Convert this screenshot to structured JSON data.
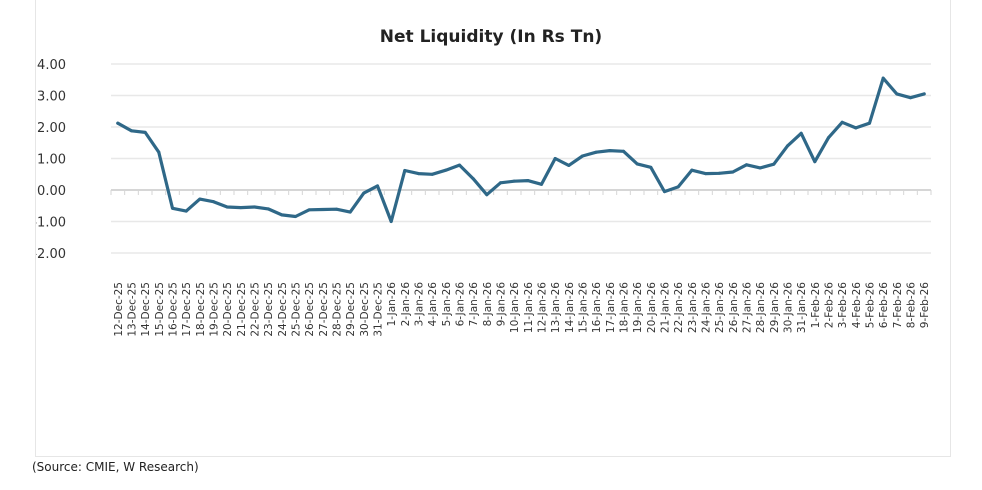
{
  "chart_data": {
    "type": "line",
    "title": "Net Liquidity (In Rs Tn)",
    "xlabel": "",
    "ylabel": "",
    "ylim": [
      -2,
      4
    ],
    "yticks": [
      "4.00",
      "3.00",
      "2.00",
      "1.00",
      "0.00",
      "-1.00",
      "-2.00"
    ],
    "grid": true,
    "line_color": "#2f6888",
    "categories": [
      "12-Dec-25",
      "13-Dec-25",
      "14-Dec-25",
      "15-Dec-25",
      "16-Dec-25",
      "17-Dec-25",
      "18-Dec-25",
      "19-Dec-25",
      "20-Dec-25",
      "21-Dec-25",
      "22-Dec-25",
      "23-Dec-25",
      "24-Dec-25",
      "25-Dec-25",
      "26-Dec-25",
      "27-Dec-25",
      "28-Dec-25",
      "29-Dec-25",
      "30-Dec-25",
      "31-Dec-25",
      "1-Jan-26",
      "2-Jan-26",
      "3-Jan-26",
      "4-Jan-26",
      "5-Jan-26",
      "6-Jan-26",
      "7-Jan-26",
      "8-Jan-26",
      "9-Jan-26",
      "10-Jan-26",
      "11-Jan-26",
      "12-Jan-26",
      "13-Jan-26",
      "14-Jan-26",
      "15-Jan-26",
      "16-Jan-26",
      "17-Jan-26",
      "18-Jan-26",
      "19-Jan-26",
      "20-Jan-26",
      "21-Jan-26",
      "22-Jan-26",
      "23-Jan-26",
      "24-Jan-26",
      "25-Jan-26",
      "26-Jan-26",
      "27-Jan-26",
      "28-Jan-26",
      "29-Jan-26",
      "30-Jan-26",
      "31-Jan-26",
      "1-Feb-26",
      "2-Feb-26",
      "3-Feb-26",
      "4-Feb-26",
      "5-Feb-26",
      "6-Feb-26",
      "7-Feb-26",
      "8-Feb-26",
      "9-Feb-26"
    ],
    "values": [
      2.12,
      1.88,
      1.83,
      1.2,
      -0.58,
      -0.67,
      -0.29,
      -0.37,
      -0.54,
      -0.56,
      -0.54,
      -0.6,
      -0.79,
      -0.84,
      -0.63,
      -0.62,
      -0.61,
      -0.7,
      -0.1,
      0.13,
      -1.0,
      0.62,
      0.52,
      0.5,
      0.63,
      0.79,
      0.36,
      -0.15,
      0.23,
      0.28,
      0.3,
      0.18,
      1.0,
      0.78,
      1.08,
      1.2,
      1.25,
      1.23,
      0.83,
      0.72,
      -0.05,
      0.1,
      0.63,
      0.52,
      0.53,
      0.57,
      0.8,
      0.7,
      0.82,
      1.4,
      1.8,
      0.9,
      1.66,
      2.15,
      1.97,
      2.12,
      3.55,
      3.05,
      2.93,
      3.05
    ]
  },
  "source": "(Source: CMIE, W Research)"
}
